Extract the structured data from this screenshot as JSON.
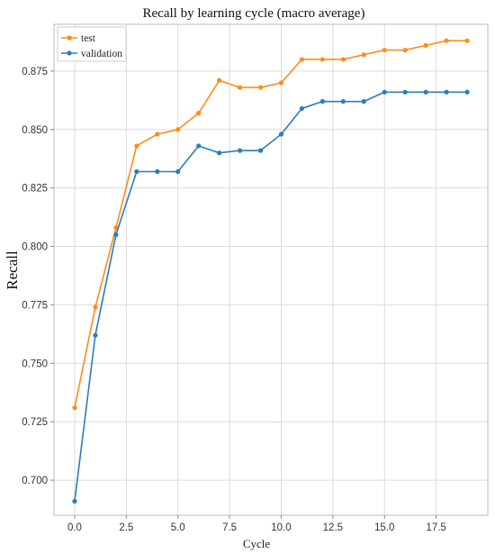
{
  "chart_data": {
    "type": "line",
    "title": "Recall by learning cycle (macro average)",
    "xlabel": "Cycle",
    "ylabel": "Recall",
    "x": [
      0,
      1,
      2,
      3,
      4,
      5,
      6,
      7,
      8,
      9,
      10,
      11,
      12,
      13,
      14,
      15,
      16,
      17,
      18,
      19
    ],
    "xlim": [
      -1,
      20
    ],
    "ylim": [
      0.685,
      0.895
    ],
    "xticks": [
      0.0,
      2.5,
      5.0,
      7.5,
      10.0,
      12.5,
      15.0,
      17.5
    ],
    "xtick_labels": [
      "0.0",
      "2.5",
      "5.0",
      "7.5",
      "10.0",
      "12.5",
      "15.0",
      "17.5"
    ],
    "yticks": [
      0.7,
      0.725,
      0.75,
      0.775,
      0.8,
      0.825,
      0.85,
      0.875
    ],
    "ytick_labels": [
      "0.700",
      "0.725",
      "0.750",
      "0.775",
      "0.800",
      "0.825",
      "0.850",
      "0.875"
    ],
    "grid": true,
    "legend_position": "top-left",
    "series": [
      {
        "name": "test",
        "color": "#ff8c1a",
        "values": [
          0.731,
          0.774,
          0.808,
          0.843,
          0.848,
          0.85,
          0.857,
          0.871,
          0.868,
          0.868,
          0.87,
          0.88,
          0.88,
          0.88,
          0.882,
          0.884,
          0.884,
          0.886,
          0.888,
          0.888
        ]
      },
      {
        "name": "validation",
        "color": "#2b7bbf",
        "values": [
          0.691,
          0.762,
          0.805,
          0.832,
          0.832,
          0.832,
          0.843,
          0.84,
          0.841,
          0.841,
          0.848,
          0.859,
          0.862,
          0.862,
          0.862,
          0.866,
          0.866,
          0.866,
          0.866,
          0.866
        ]
      }
    ]
  }
}
